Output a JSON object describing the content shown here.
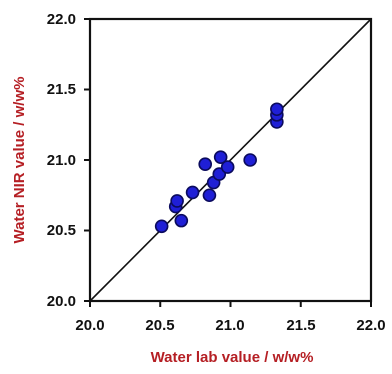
{
  "chart_data": {
    "type": "scatter",
    "title": "",
    "xlabel": "Water lab value / w/w%",
    "ylabel": "Water NIR value / w/w%",
    "xlim": [
      20.0,
      22.0
    ],
    "ylim": [
      20.0,
      22.0
    ],
    "xticks": [
      "20.0",
      "20.5",
      "21.0",
      "21.5",
      "22.0"
    ],
    "yticks": [
      "20.0",
      "20.5",
      "21.0",
      "21.5",
      "22.0"
    ],
    "grid": false,
    "legend": "none",
    "reference_line": {
      "type": "identity",
      "from": [
        20.0,
        20.0
      ],
      "to": [
        22.0,
        22.0
      ]
    },
    "series": [
      {
        "points": [
          {
            "x": 20.51,
            "y": 20.53
          },
          {
            "x": 20.61,
            "y": 20.67
          },
          {
            "x": 20.62,
            "y": 20.71
          },
          {
            "x": 20.65,
            "y": 20.57
          },
          {
            "x": 20.73,
            "y": 20.77
          },
          {
            "x": 20.82,
            "y": 20.97
          },
          {
            "x": 20.85,
            "y": 20.75
          },
          {
            "x": 20.88,
            "y": 20.84
          },
          {
            "x": 20.92,
            "y": 20.9
          },
          {
            "x": 20.93,
            "y": 21.02
          },
          {
            "x": 20.98,
            "y": 20.95
          },
          {
            "x": 21.14,
            "y": 21.0
          },
          {
            "x": 21.33,
            "y": 21.27
          },
          {
            "x": 21.33,
            "y": 21.32
          },
          {
            "x": 21.33,
            "y": 21.36
          }
        ]
      }
    ],
    "colors": {
      "marker_fill": "#1f1fd6",
      "marker_edge": "#0b0b5e",
      "axis_title": "#b51f24",
      "axis": "#111111",
      "reference_line": "#111111"
    }
  }
}
